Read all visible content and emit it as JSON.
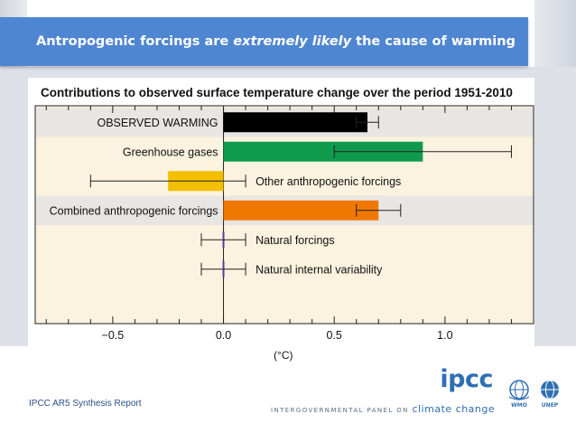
{
  "slide": {
    "title_part1": "Antropogenic forcings are ",
    "title_emph": "extremely likely",
    "title_part2": " the cause of warming",
    "source": "IPCC AR5 Synthesis Report"
  },
  "logos": {
    "ipcc_word": "ipcc",
    "panel_text": "INTERGOVERNMENTAL PANEL ON ",
    "panel_cc": "climate change",
    "wmo": "WMO",
    "unep": "UNEP"
  },
  "colors": {
    "banner": "#4f86d1",
    "chart_bg": "#fbf2df",
    "band": "#e8e6e2",
    "observed": "#000000",
    "ghg": "#109a4d",
    "other": "#f3c000",
    "combined": "#f07800",
    "natural": "#5b3c9a"
  },
  "chart_data": {
    "type": "bar",
    "orientation": "horizontal",
    "title": "Contributions to observed surface temperature change over the period 1951-2010",
    "xlabel": "(°C)",
    "xlim": [
      -0.85,
      1.4
    ],
    "xticks": [
      -0.5,
      0.0,
      0.5,
      1.0
    ],
    "xtick_labels": [
      "−0.5",
      "0.0",
      "0.5",
      "1.0"
    ],
    "minor_step": 0.1,
    "categories": [
      "OBSERVED WARMING",
      "Greenhouse gases",
      "Other anthropogenic forcings",
      "Combined anthropogenic forcings",
      "Natural forcings",
      "Natural internal variability"
    ],
    "label_side": [
      "left",
      "left",
      "right",
      "left",
      "right",
      "right"
    ],
    "shaded": [
      true,
      false,
      false,
      true,
      false,
      false
    ],
    "values": [
      0.65,
      0.9,
      -0.25,
      0.7,
      0.0,
      0.0
    ],
    "error_low": [
      0.6,
      0.5,
      -0.6,
      0.6,
      -0.1,
      -0.1
    ],
    "error_high": [
      0.7,
      1.3,
      0.1,
      0.8,
      0.1,
      0.1
    ],
    "bar_colors": [
      "#000000",
      "#109a4d",
      "#f3c000",
      "#f07800",
      "#5b3c9a",
      "#5b3c9a"
    ]
  }
}
